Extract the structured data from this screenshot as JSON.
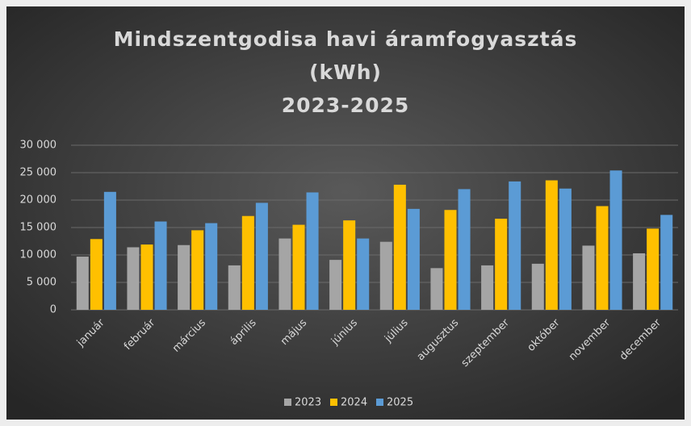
{
  "chart_data": {
    "type": "bar",
    "title": [
      "Mindszentgodisa havi áramfogyasztás",
      "(kWh)",
      "2023-2025"
    ],
    "categories": [
      "január",
      "február",
      "március",
      "április",
      "május",
      "június",
      "július",
      "augusztus",
      "szeptember",
      "október",
      "november",
      "december"
    ],
    "series": [
      {
        "name": "2023",
        "color": "#a5a5a5",
        "values": [
          9700,
          11400,
          11800,
          8100,
          13000,
          9100,
          12400,
          7600,
          8100,
          8400,
          11700,
          10300
        ]
      },
      {
        "name": "2024",
        "color": "#ffc000",
        "values": [
          12900,
          11900,
          14500,
          17100,
          15500,
          16300,
          22800,
          18200,
          16600,
          23600,
          18900,
          14800
        ]
      },
      {
        "name": "2025",
        "color": "#5b9bd5",
        "values": [
          21500,
          16100,
          15800,
          19500,
          21400,
          13000,
          18400,
          22000,
          23400,
          22100,
          25400,
          17300
        ]
      }
    ],
    "ylim": [
      0,
      30000
    ],
    "yticks": [
      0,
      {
        "value": 5000,
        "label": "5 000"
      },
      {
        "value": 10000,
        "label": "10 000"
      },
      {
        "value": 15000,
        "label": "15 000"
      },
      {
        "value": 20000,
        "label": "20 000"
      },
      {
        "value": 25000,
        "label": "25 000"
      },
      {
        "value": 30000,
        "label": "30 000"
      }
    ],
    "grid": true,
    "legend": "bottom"
  }
}
